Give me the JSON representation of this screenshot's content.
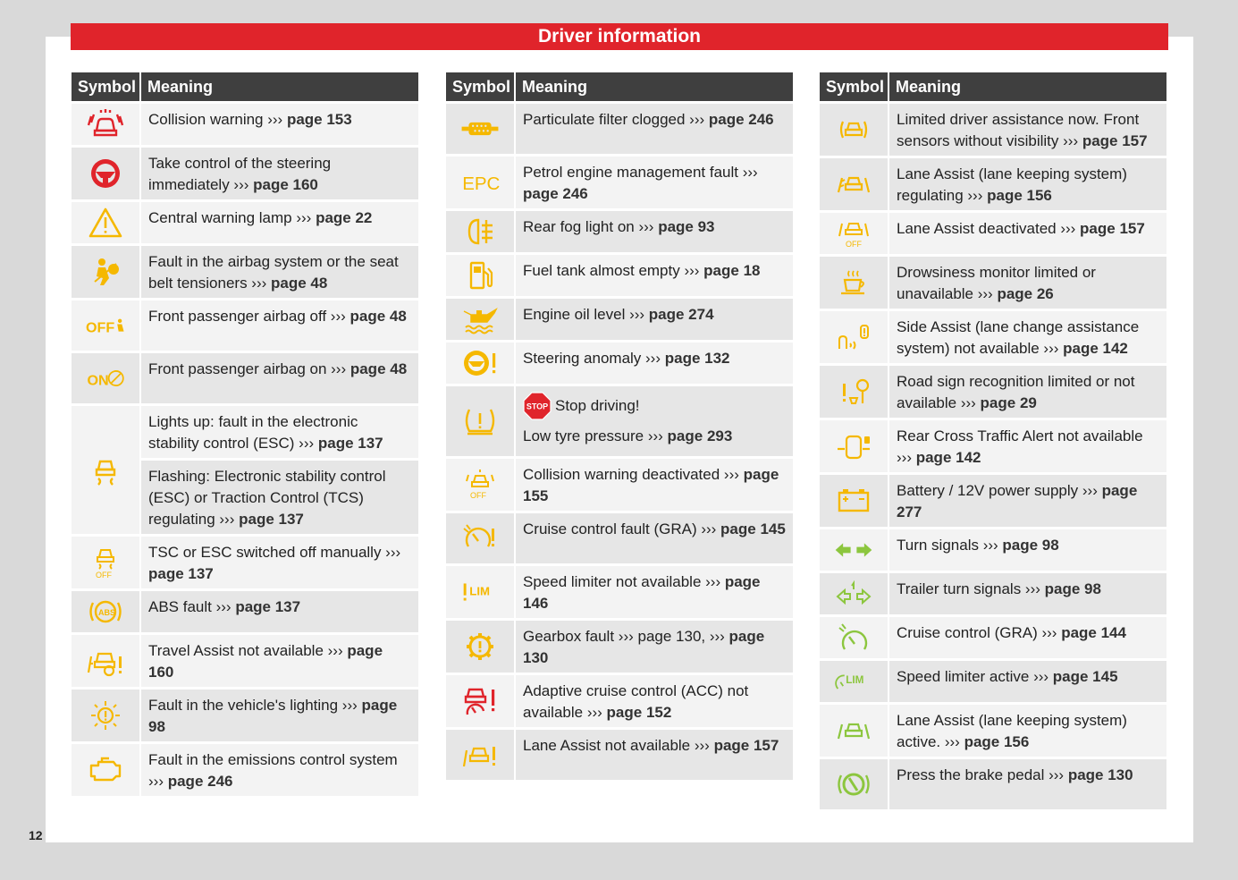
{
  "header": {
    "title": "Driver information"
  },
  "page_number": "12",
  "colors": {
    "banner": "#e0242b",
    "yellow": "#f5b800",
    "red": "#e0242b",
    "green": "#8cc63e"
  },
  "columns": [
    {
      "symbol_header": "Symbol",
      "meaning_header": "Meaning",
      "rows": [
        {
          "icon": "collision-warning-icon",
          "text": "Collision warning ››› ",
          "page": "page 153"
        },
        {
          "icon": "steering-wheel-icon",
          "text": "Take control of the steering immediately ››› ",
          "page": "page 160"
        },
        {
          "icon": "warning-triangle-icon",
          "text": "Central warning lamp ››› ",
          "page": "page 22"
        },
        {
          "icon": "airbag-fault-icon",
          "text": "Fault in the airbag system or the seat belt tensioners ››› ",
          "page": "page 48"
        },
        {
          "icon": "passenger-airbag-off-icon",
          "text": "Front passenger airbag off ››› ",
          "page": "page 48"
        },
        {
          "icon": "passenger-airbag-on-icon",
          "text": "Front passenger airbag on ››› ",
          "page": "page 48"
        },
        {
          "icon": "esc-icon",
          "subs": [
            {
              "text": "Lights up: fault in the electronic stability control (ESC) ››› ",
              "page": "page 137"
            },
            {
              "text": "Flashing: Electronic stability control (ESC) or Traction Control (TCS) regulating ››› ",
              "page": "page 137"
            }
          ]
        },
        {
          "icon": "esc-off-icon",
          "text": "TSC or ESC switched off manually ››› ",
          "page": "page 137"
        },
        {
          "icon": "abs-icon",
          "text": "ABS fault ››› ",
          "page": "page 137"
        },
        {
          "icon": "travel-assist-icon",
          "text": "Travel Assist not available ››› ",
          "page": "page 160"
        },
        {
          "icon": "lighting-fault-icon",
          "text": "Fault in the vehicle's lighting ››› ",
          "page": "page 98"
        },
        {
          "icon": "engine-icon",
          "text": "Fault in the emissions control system ››› ",
          "page": "page 246"
        }
      ]
    },
    {
      "symbol_header": "Symbol",
      "meaning_header": "Meaning",
      "rows": [
        {
          "icon": "particulate-filter-icon",
          "text": "Particulate filter clogged ››› ",
          "page": "page 246"
        },
        {
          "icon": "epc-icon",
          "epc_label": "EPC",
          "text": "Petrol engine management fault ››› ",
          "page": "page 246"
        },
        {
          "icon": "rear-fog-light-icon",
          "text": "Rear fog light on ››› ",
          "page": "page 93"
        },
        {
          "icon": "fuel-pump-icon",
          "text": "Fuel tank almost empty ››› ",
          "page": "page 18"
        },
        {
          "icon": "oil-can-icon",
          "text": "Engine oil level ››› ",
          "page": "page 274"
        },
        {
          "icon": "steering-anomaly-icon",
          "text": "Steering anomaly ››› ",
          "page": "page 132"
        },
        {
          "icon": "tyre-pressure-icon",
          "stop_label": "Stop driving!",
          "stop_sign": "STOP",
          "text": "Low tyre pressure ››› ",
          "page": "page 293"
        },
        {
          "icon": "collision-warning-off-icon",
          "text": "Collision warning deactivated ››› ",
          "page": "page 155"
        },
        {
          "icon": "cruise-fault-icon",
          "text": "Cruise control fault (GRA) ››› ",
          "page": "page 145"
        },
        {
          "icon": "speed-limiter-fault-icon",
          "lim_label": "LIM",
          "text": "Speed limiter not available ››› ",
          "page": "page 146"
        },
        {
          "icon": "gearbox-icon",
          "text": "Gearbox fault ››› page 130, ››› ",
          "page": "page 130"
        },
        {
          "icon": "acc-fault-icon",
          "text": "Adaptive cruise control (ACC) not available ››› ",
          "page": "page 152"
        },
        {
          "icon": "lane-assist-fault-icon",
          "text": "Lane Assist not available ››› ",
          "page": "page 157"
        }
      ]
    },
    {
      "symbol_header": "Symbol",
      "meaning_header": "Meaning",
      "rows": [
        {
          "icon": "front-sensor-icon",
          "text": "Limited driver assistance now. Front sensors without visibility ››› ",
          "page": "page 157"
        },
        {
          "icon": "lane-assist-regulating-icon",
          "text": "Lane Assist (lane keeping system) regulating ››› ",
          "page": "page 156"
        },
        {
          "icon": "lane-assist-off-icon",
          "text": "Lane Assist deactivated ››› ",
          "page": "page 157"
        },
        {
          "icon": "coffee-cup-icon",
          "text": "Drowsiness monitor limited or unavailable ››› ",
          "page": "page 26"
        },
        {
          "icon": "side-assist-icon",
          "text": "Side Assist (lane change assistance system) not available ››› ",
          "page": "page 142"
        },
        {
          "icon": "road-sign-icon",
          "text": "Road sign recognition limited or not available ››› ",
          "page": "page 29"
        },
        {
          "icon": "rear-cross-traffic-icon",
          "text": "Rear Cross Traffic Alert not available ››› ",
          "page": "page 142"
        },
        {
          "icon": "battery-icon",
          "text": "Battery / 12V power supply ››› ",
          "page": "page 277"
        },
        {
          "icon": "turn-signals-icon",
          "text": "Turn signals ››› ",
          "page": "page 98"
        },
        {
          "icon": "trailer-signals-icon",
          "text": "Trailer turn signals ››› ",
          "page": "page 98"
        },
        {
          "icon": "cruise-control-icon",
          "text": "Cruise control (GRA) ››› ",
          "page": "page 144"
        },
        {
          "icon": "speed-limiter-active-icon",
          "lim_label": "LIM",
          "text": "Speed limiter active ››› ",
          "page": "page 145"
        },
        {
          "icon": "lane-assist-active-icon",
          "text": "Lane Assist (lane keeping system) active. ››› ",
          "page": "page 156"
        },
        {
          "icon": "brake-pedal-icon",
          "text": "Press the brake pedal ››› ",
          "page": "page 130"
        }
      ]
    }
  ]
}
